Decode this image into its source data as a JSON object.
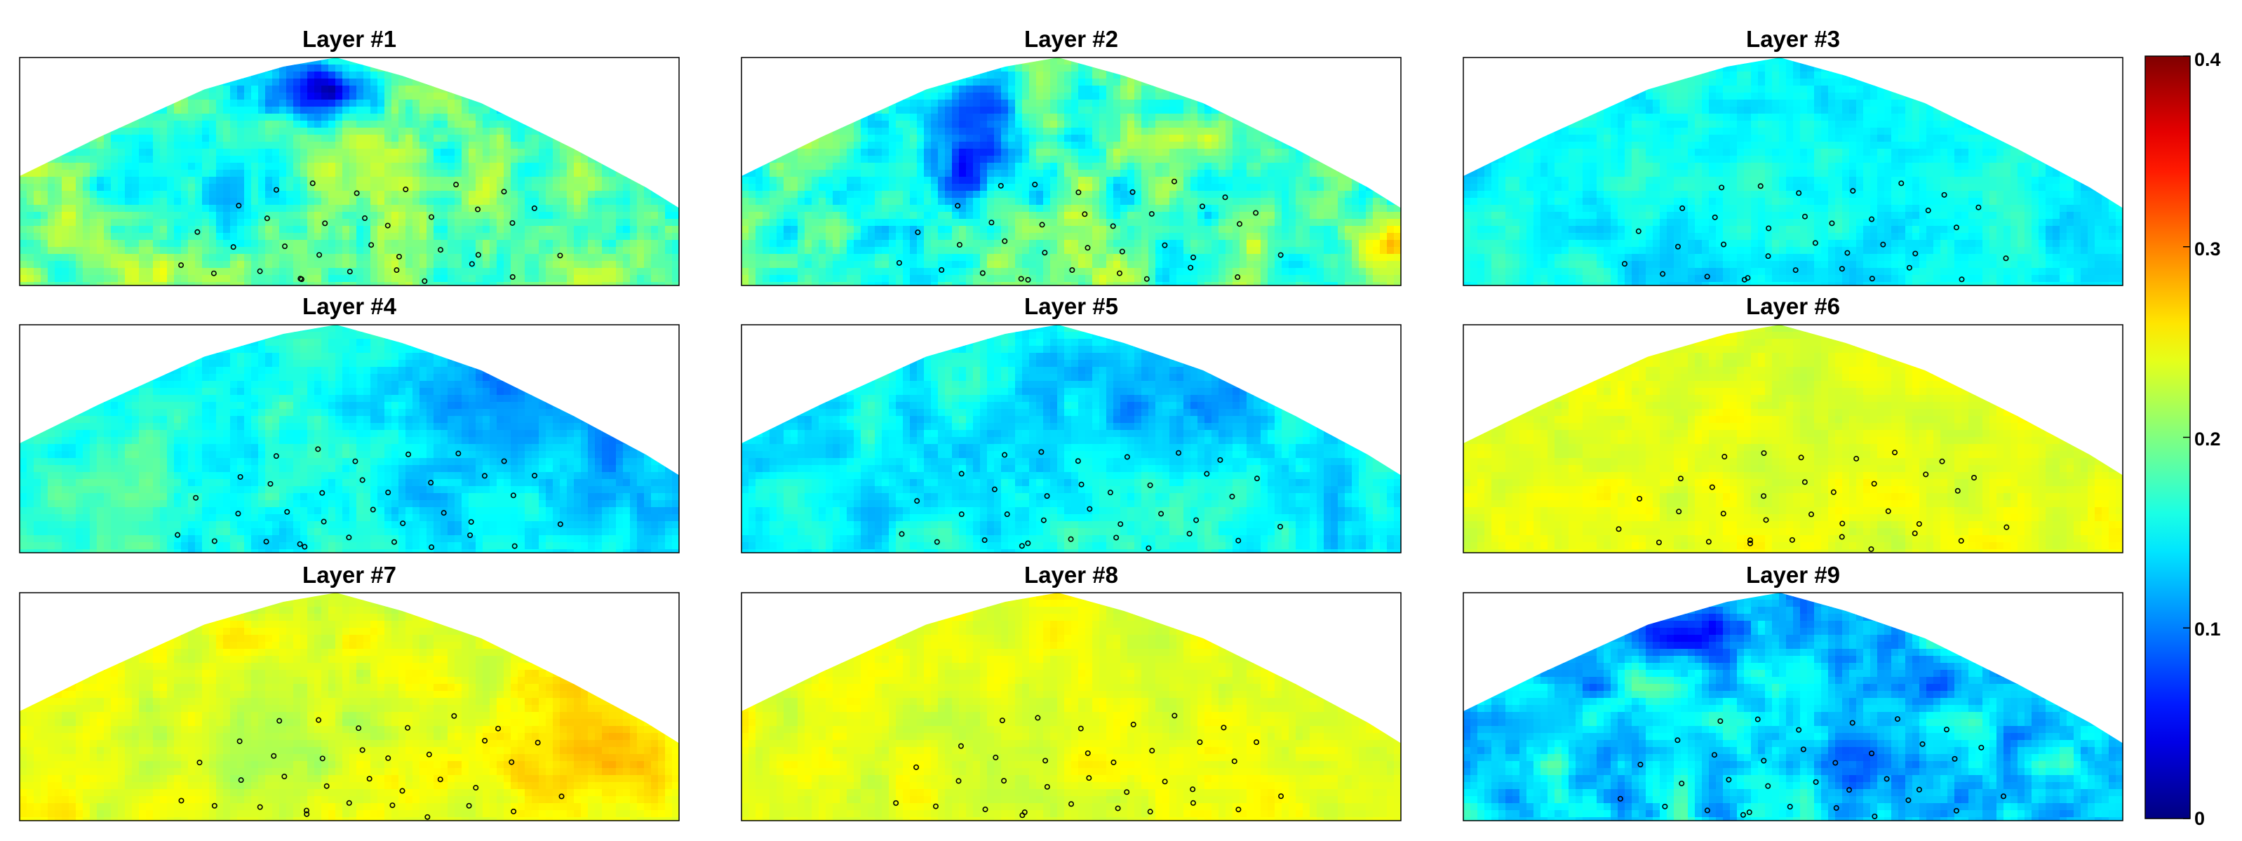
{
  "chart_data": {
    "type": "heatmap",
    "layout": "3x3 small multiples sharing one colorbar",
    "colormap": "jet",
    "clim": [
      0,
      0.4
    ],
    "colorbar": {
      "position": "right",
      "ticks": [
        0,
        0.1,
        0.2,
        0.3,
        0.4
      ],
      "tick_labels": [
        "0",
        "0.1",
        "0.2",
        "0.3",
        "0.4"
      ]
    },
    "grid": false,
    "axes_ticks_shown": false,
    "markers": "small open black circles at well locations",
    "panels": [
      {
        "title": "Layer #1",
        "mean_value": 0.19,
        "dominant": "green-cyan with deep-blue low zone near top-centre and blue patches mid-left"
      },
      {
        "title": "Layer #2",
        "mean_value": 0.18,
        "dominant": "cyan-blue with deep-blue low near top-centre-left, yellow-orange at right edge"
      },
      {
        "title": "Layer #3",
        "mean_value": 0.15,
        "dominant": "fairly uniform cyan"
      },
      {
        "title": "Layer #4",
        "mean_value": 0.15,
        "dominant": "cyan/green on left grading to blue on right"
      },
      {
        "title": "Layer #5",
        "mean_value": 0.15,
        "dominant": "cyan with blue patches at upper right"
      },
      {
        "title": "Layer #6",
        "mean_value": 0.24,
        "dominant": "uniform yellow-green"
      },
      {
        "title": "Layer #7",
        "mean_value": 0.24,
        "dominant": "yellow-green with slightly orange zone lower right"
      },
      {
        "title": "Layer #8",
        "mean_value": 0.24,
        "dominant": "uniform yellow-green"
      },
      {
        "title": "Layer #9",
        "mean_value": 0.14,
        "dominant": "cyan-blue with deep-blue spots near top"
      }
    ]
  }
}
